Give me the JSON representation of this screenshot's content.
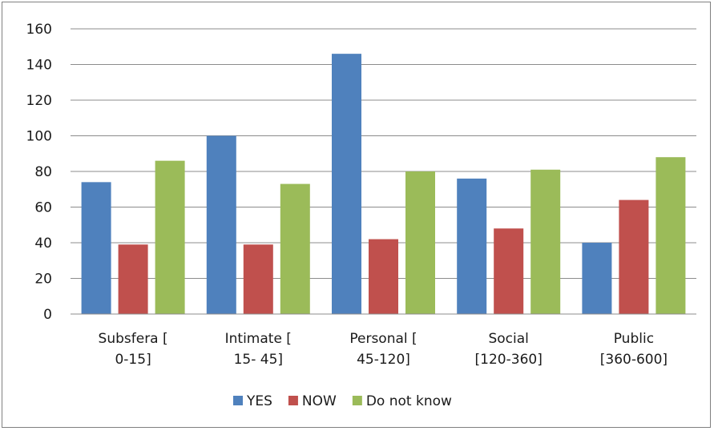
{
  "chart_data": {
    "type": "bar",
    "categories": [
      [
        "Subsfera       [",
        "0-15]"
      ],
      [
        "Intimate       [",
        "15-  45]"
      ],
      [
        "Personal       [",
        "45-120]"
      ],
      [
        "Social",
        "[120-360]"
      ],
      [
        "Public",
        "[360-600]"
      ]
    ],
    "series": [
      {
        "name": "YES",
        "color": "#4f81bd",
        "values": [
          74,
          100,
          146,
          76,
          40
        ]
      },
      {
        "name": "NOW",
        "color": "#c0504d",
        "values": [
          39,
          39,
          42,
          48,
          64
        ]
      },
      {
        "name": "Do not know",
        "color": "#9bbb59",
        "values": [
          86,
          73,
          80,
          81,
          88
        ]
      }
    ],
    "ylim": [
      0,
      160
    ],
    "yticks": [
      0,
      20,
      40,
      60,
      80,
      100,
      120,
      140,
      160
    ],
    "grid": true,
    "legend": "bottom"
  }
}
